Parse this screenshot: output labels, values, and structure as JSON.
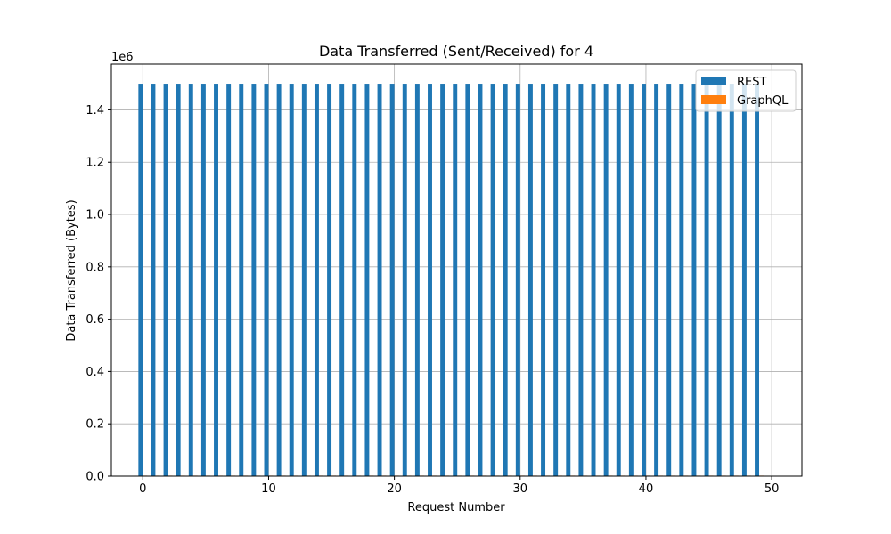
{
  "chart_data": {
    "type": "bar",
    "title": "Data Transferred (Sent/Received) for 4",
    "xlabel": "Request Number",
    "ylabel": "Data Transferred (Bytes)",
    "y_offset_label": "1e6",
    "xlim": [
      -2.5,
      52.4
    ],
    "ylim": [
      0,
      1575000
    ],
    "x_ticks": [
      0,
      10,
      20,
      30,
      40,
      50
    ],
    "x_tick_labels": [
      "0",
      "10",
      "20",
      "30",
      "40",
      "50"
    ],
    "y_ticks": [
      0,
      200000,
      400000,
      600000,
      800000,
      1000000,
      1200000,
      1400000
    ],
    "y_tick_labels": [
      "0.0",
      "0.2",
      "0.4",
      "0.6",
      "0.8",
      "1.0",
      "1.2",
      "1.4"
    ],
    "grid": true,
    "legend_position": "top-right",
    "bar_width": 0.35,
    "x": [
      0,
      1,
      2,
      3,
      4,
      5,
      6,
      7,
      8,
      9,
      10,
      11,
      12,
      13,
      14,
      15,
      16,
      17,
      18,
      19,
      20,
      21,
      22,
      23,
      24,
      25,
      26,
      27,
      28,
      29,
      30,
      31,
      32,
      33,
      34,
      35,
      36,
      37,
      38,
      39,
      40,
      41,
      42,
      43,
      44,
      45,
      46,
      47,
      48,
      49
    ],
    "series": [
      {
        "name": "REST",
        "color": "#1f77b4",
        "offset": -0.175,
        "values": [
          1500000,
          1500000,
          1500000,
          1500000,
          1500000,
          1500000,
          1500000,
          1500000,
          1500000,
          1500000,
          1500000,
          1500000,
          1500000,
          1500000,
          1500000,
          1500000,
          1500000,
          1500000,
          1500000,
          1500000,
          1500000,
          1500000,
          1500000,
          1500000,
          1500000,
          1500000,
          1500000,
          1500000,
          1500000,
          1500000,
          1500000,
          1500000,
          1500000,
          1500000,
          1500000,
          1500000,
          1500000,
          1500000,
          1500000,
          1500000,
          1500000,
          1500000,
          1500000,
          1500000,
          1500000,
          1500000,
          1500000,
          1500000,
          1500000,
          1500000
        ]
      },
      {
        "name": "GraphQL",
        "color": "#ff7f0e",
        "offset": 0.175,
        "values": [
          2000,
          2000,
          2000,
          2000,
          2000,
          2000,
          2000,
          2000,
          2000,
          2000,
          2000,
          2000,
          2000,
          2000,
          2000,
          2000,
          2000,
          2000,
          2000,
          2000,
          2000,
          2000,
          2000,
          2000,
          2000,
          2000,
          2000,
          2000,
          2000,
          2000,
          2000,
          2000,
          2000,
          2000,
          2000,
          2000,
          2000,
          2000,
          2000,
          2000,
          2000,
          2000,
          2000,
          2000,
          2000,
          2000,
          2000,
          2000,
          2000,
          2000
        ]
      }
    ]
  }
}
